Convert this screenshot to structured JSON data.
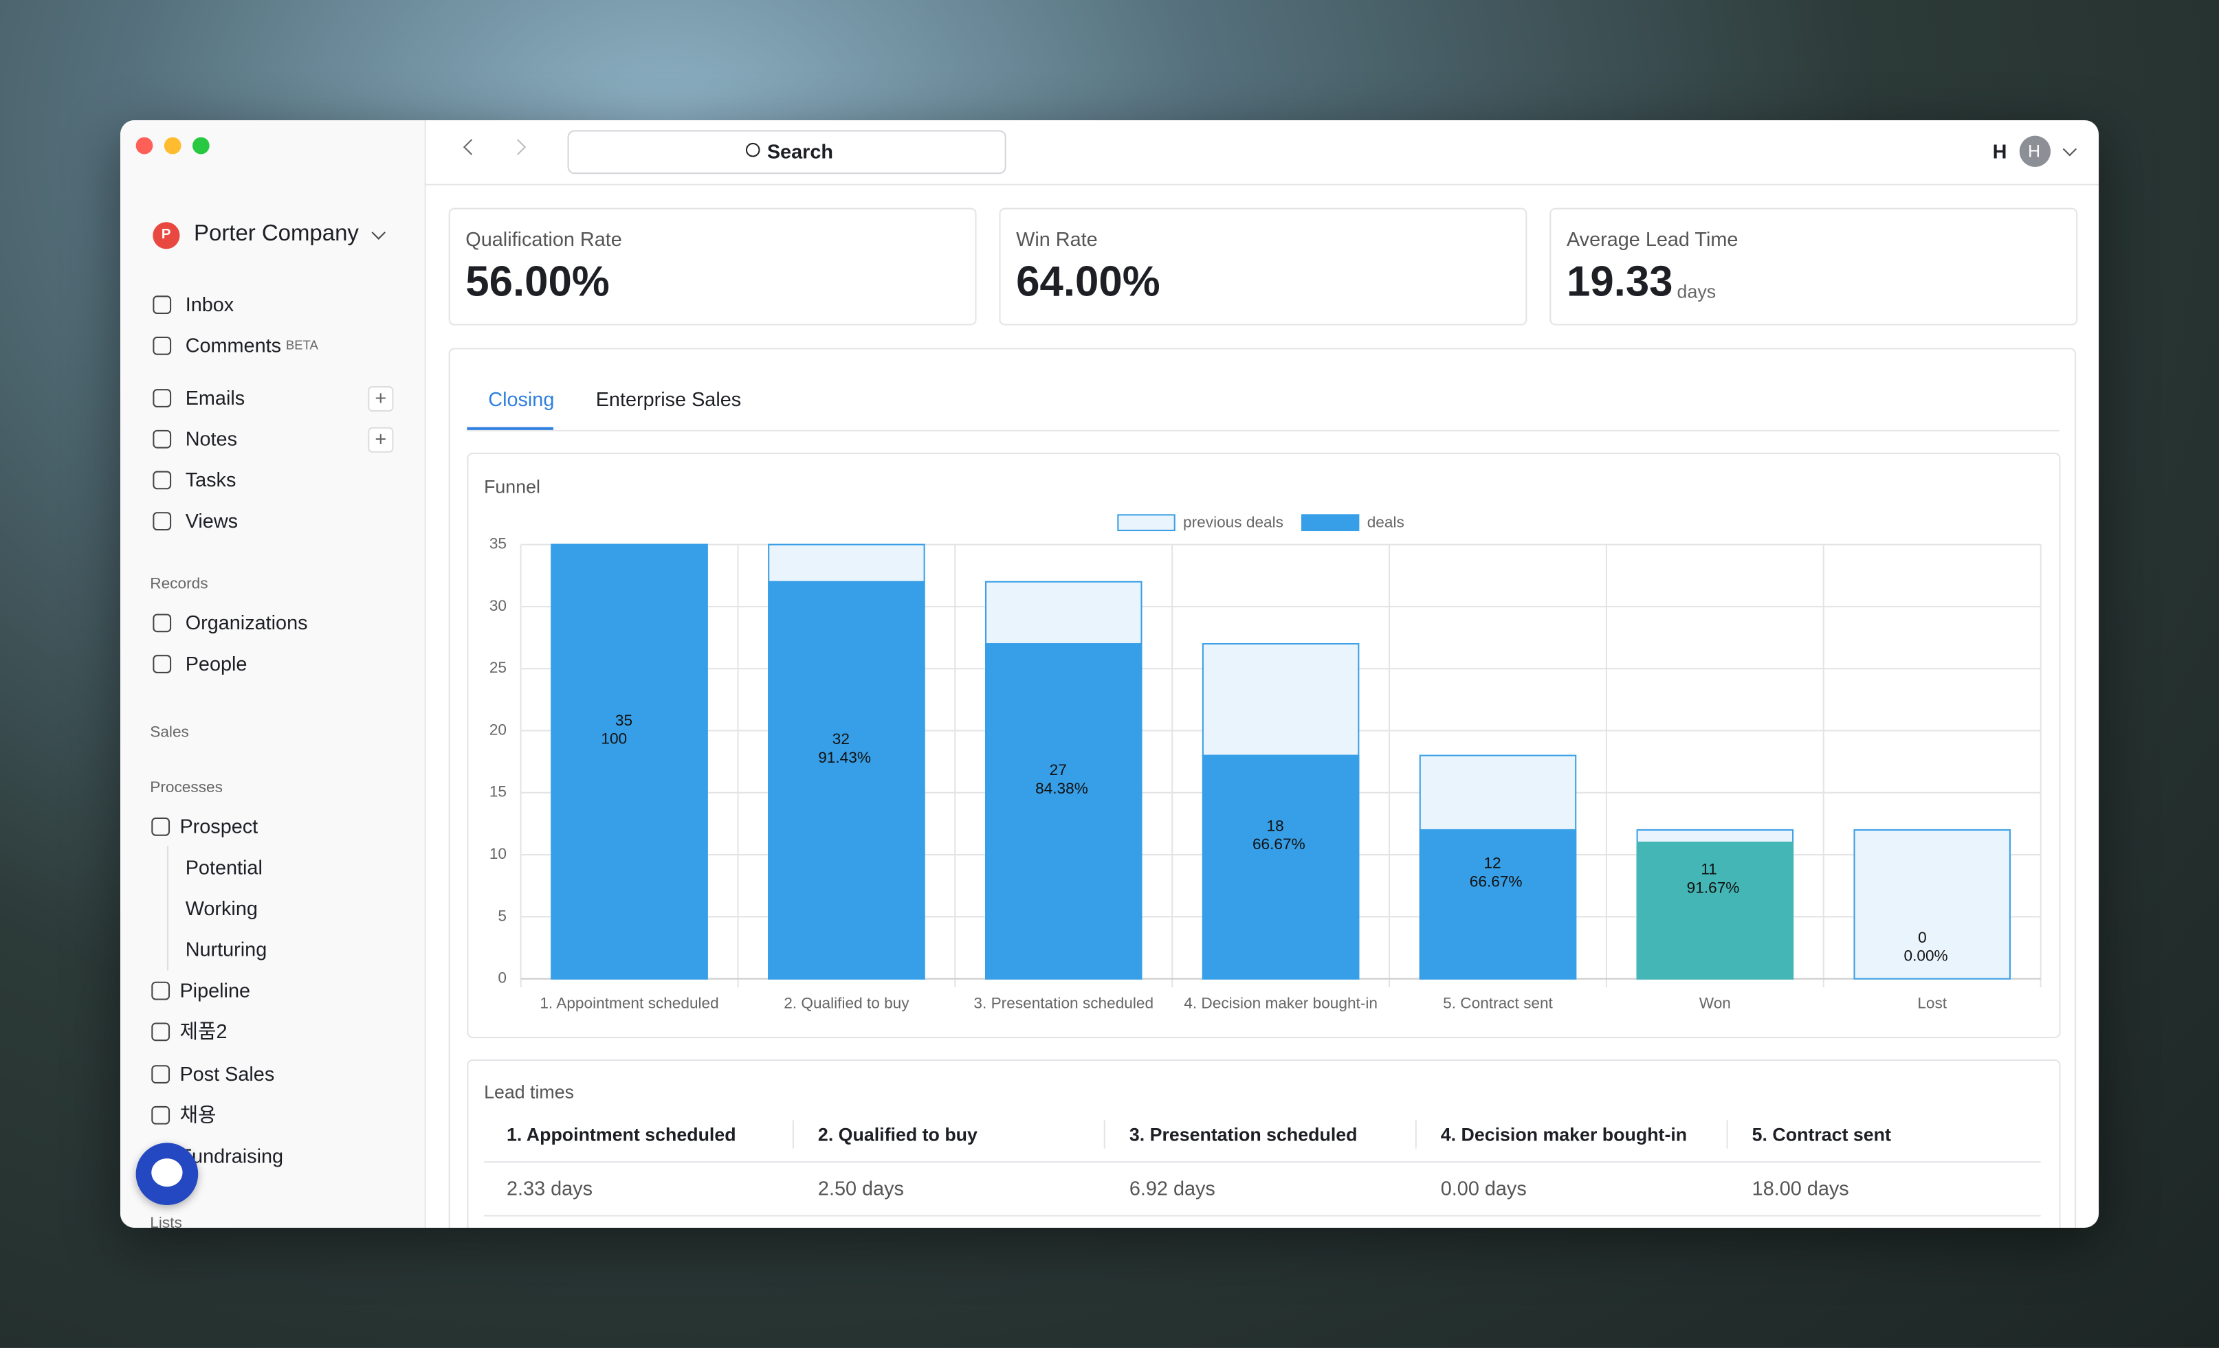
{
  "window": {
    "search": "Search",
    "user_initial": "H",
    "avatar": "H"
  },
  "sidebar": {
    "company": "Porter Company",
    "company_initial": "P",
    "nav": [
      "Inbox",
      "Comments",
      "Emails",
      "Notes",
      "Tasks",
      "Views"
    ],
    "comments_badge": "BETA",
    "records_header": "Records",
    "records": [
      "Organizations",
      "People"
    ],
    "sales_header": "Sales",
    "processes_header": "Processes",
    "processes": [
      "Prospect",
      "Potential",
      "Working",
      "Nurturing",
      "Pipeline",
      "제품2",
      "Post Sales",
      "채용",
      "Fundraising"
    ],
    "lists_header": "Lists"
  },
  "stats": [
    {
      "label": "Qualification Rate",
      "value": "56.00%"
    },
    {
      "label": "Win Rate",
      "value": "64.00%"
    },
    {
      "label": "Average Lead Time",
      "value": "19.33",
      "unit": "days"
    }
  ],
  "tabs": [
    "Closing",
    "Enterprise Sales"
  ],
  "chart_data": {
    "type": "bar",
    "title": "Funnel",
    "categories": [
      "1. Appointment scheduled",
      "2. Qualified to buy",
      "3. Presentation scheduled",
      "4. Decision maker bought-in",
      "5. Contract sent",
      "Won",
      "Lost"
    ],
    "series": [
      {
        "name": "previous deals",
        "color": "#eaf4fc",
        "border": "#3a9fe6",
        "values": [
          35,
          35,
          32,
          27,
          18,
          12,
          12
        ]
      },
      {
        "name": "deals",
        "color": "#379fe7",
        "colors": [
          "#379fe7",
          "#379fe7",
          "#379fe7",
          "#379fe7",
          "#379fe7",
          "#45b6b6",
          "#379fe7"
        ],
        "values": [
          35,
          32,
          27,
          18,
          12,
          11,
          0
        ],
        "rate_labels": [
          "100",
          "91.43%",
          "84.38%",
          "66.67%",
          "66.67%",
          "91.67%",
          "0.00%"
        ]
      }
    ],
    "ylim": [
      0,
      35
    ],
    "yticks": [
      0,
      5,
      10,
      15,
      20,
      25,
      30,
      35
    ],
    "grid": true,
    "legend": "top",
    "overlap": true
  },
  "lead_times": {
    "title": "Lead times",
    "headers": [
      "1. Appointment scheduled",
      "2. Qualified to buy",
      "3. Presentation scheduled",
      "4. Decision maker bought-in",
      "5. Contract sent"
    ],
    "rows": [
      [
        "2.33 days",
        "2.50 days",
        "6.92 days",
        "0.00 days",
        "18.00 days"
      ]
    ]
  }
}
